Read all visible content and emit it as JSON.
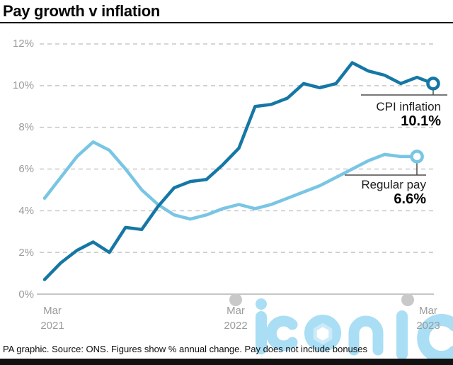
{
  "header": {
    "title": "Pay growth v inflation"
  },
  "footer": {
    "credit": "PA graphic. Source: ONS. Figures show % annual change. Pay does not include bonuses"
  },
  "watermark": {
    "text": "iconic",
    "color": "#a9def5",
    "hexagon_color": "#cdeaf8"
  },
  "chart_data": {
    "type": "line",
    "title": "Pay growth v inflation",
    "grid": "horizontal-dashed",
    "legend_position": "end-of-line annotations",
    "x_axis": {
      "unit": "monthly",
      "start": "Mar 2021",
      "end": "Mar 2023",
      "ticks": [
        {
          "line1": "Mar",
          "line2": "2021",
          "dot": false
        },
        {
          "line1": "Mar",
          "line2": "2022",
          "dot": true
        },
        {
          "line1": "Mar",
          "line2": "2023",
          "dot": true
        }
      ]
    },
    "y_axis": {
      "min": 0,
      "max": 12,
      "ticks": [
        {
          "value": 12,
          "label": "12%"
        },
        {
          "value": 10,
          "label": "10%"
        },
        {
          "value": 8,
          "label": "8%"
        },
        {
          "value": 6,
          "label": "6%"
        },
        {
          "value": 4,
          "label": "4%"
        },
        {
          "value": 2,
          "label": "2%"
        },
        {
          "value": 0,
          "label": "0%"
        }
      ]
    },
    "series": [
      {
        "name": "CPI inflation",
        "color": "#1577a5",
        "marker": "open-circle",
        "first_month": "Mar 2021",
        "last_month": "Mar 2023",
        "start_month_index": 0,
        "values": [
          0.7,
          1.5,
          2.1,
          2.5,
          2.0,
          3.2,
          3.1,
          4.2,
          5.1,
          5.4,
          5.5,
          6.2,
          7.0,
          9.0,
          9.1,
          9.4,
          10.1,
          9.9,
          10.1,
          11.1,
          10.7,
          10.5,
          10.1,
          10.4,
          10.1
        ],
        "end_label": "CPI inflation",
        "end_value_label": "10.1%"
      },
      {
        "name": "Regular pay",
        "color": "#79c5e4",
        "marker": "open-circle",
        "first_month": "Mar 2021",
        "last_month": "Feb 2023",
        "start_month_index": 0,
        "values": [
          4.6,
          5.6,
          6.6,
          7.3,
          6.9,
          6.0,
          5.0,
          4.3,
          3.8,
          3.6,
          3.8,
          4.1,
          4.3,
          4.1,
          4.3,
          4.6,
          4.9,
          5.2,
          5.6,
          6.0,
          6.4,
          6.7,
          6.6,
          6.6
        ],
        "end_label": "Regular pay",
        "end_value_label": "6.6%"
      }
    ]
  }
}
